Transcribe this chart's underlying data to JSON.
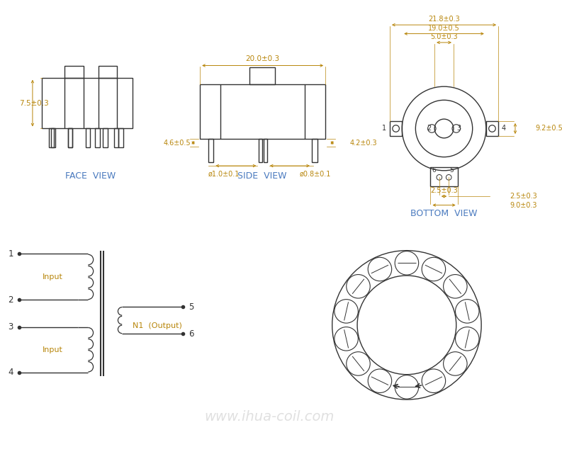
{
  "bg_color": "#ffffff",
  "line_color": "#333333",
  "dim_color": "#b8860b",
  "text_color": "#333333",
  "view_label_color": "#4a7abf",
  "watermark_text": "www.ihua-coil.com",
  "face_view_label": "FACE  VIEW",
  "side_view_label": "SIDE  VIEW",
  "bottom_view_label": "BOTTOM  VIEW",
  "dim_75": "7.5±0.3",
  "dim_200": "20.0±0.3",
  "dim_46": "4.6±0.5",
  "dim_42": "4.2±0.3",
  "dim_d10": "ø1.0±0.1",
  "dim_d08": "ø0.8±0.1",
  "dim_218": "21.8±0.3",
  "dim_190": "19.0±0.5",
  "dim_50": "5.0±0.3",
  "dim_92": "9.2±0.5",
  "dim_25": "2.5±0.3",
  "dim_90": "9.0±0.3",
  "schematic_output_label": "N1  (Output)"
}
